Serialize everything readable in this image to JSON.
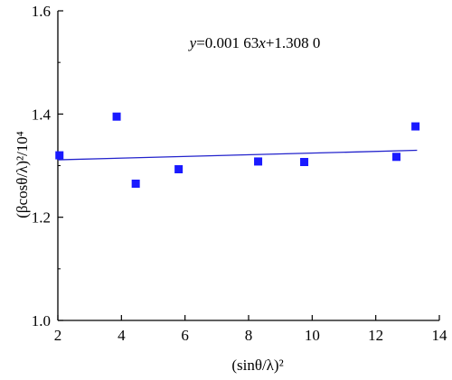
{
  "chart_data": {
    "type": "scatter",
    "xlabel": "(sinθ/λ)²",
    "ylabel": "(βcosθ/λ)²/10⁴",
    "xlim": [
      2,
      14
    ],
    "ylim": [
      1.0,
      1.6
    ],
    "x_ticks": [
      "2",
      "4",
      "6",
      "8",
      "10",
      "12",
      "14"
    ],
    "y_ticks": [
      "1.0",
      "1.2",
      "1.4",
      "1.6"
    ],
    "x_tick_values": [
      2,
      4,
      6,
      8,
      10,
      12,
      14
    ],
    "y_tick_values": [
      1.0,
      1.2,
      1.4,
      1.6
    ],
    "grid": false,
    "points": [
      {
        "x": 2.05,
        "y": 1.32
      },
      {
        "x": 3.85,
        "y": 1.395
      },
      {
        "x": 4.45,
        "y": 1.265
      },
      {
        "x": 5.8,
        "y": 1.293
      },
      {
        "x": 8.3,
        "y": 1.308
      },
      {
        "x": 9.75,
        "y": 1.307
      },
      {
        "x": 12.65,
        "y": 1.317
      },
      {
        "x": 13.25,
        "y": 1.376
      }
    ],
    "fit_line": {
      "slope": 0.00163,
      "intercept": 1.308,
      "x_start": 2.0,
      "x_end": 13.3
    },
    "annotation": {
      "prefix": "y",
      "mid": "=0.001 63",
      "x_var": "x",
      "suffix": "+1.308 0",
      "x": 8.2,
      "y": 1.528
    },
    "colors": {
      "points": "#1a1aff",
      "fit_line": "#2222cc",
      "axes": "#000000"
    }
  }
}
